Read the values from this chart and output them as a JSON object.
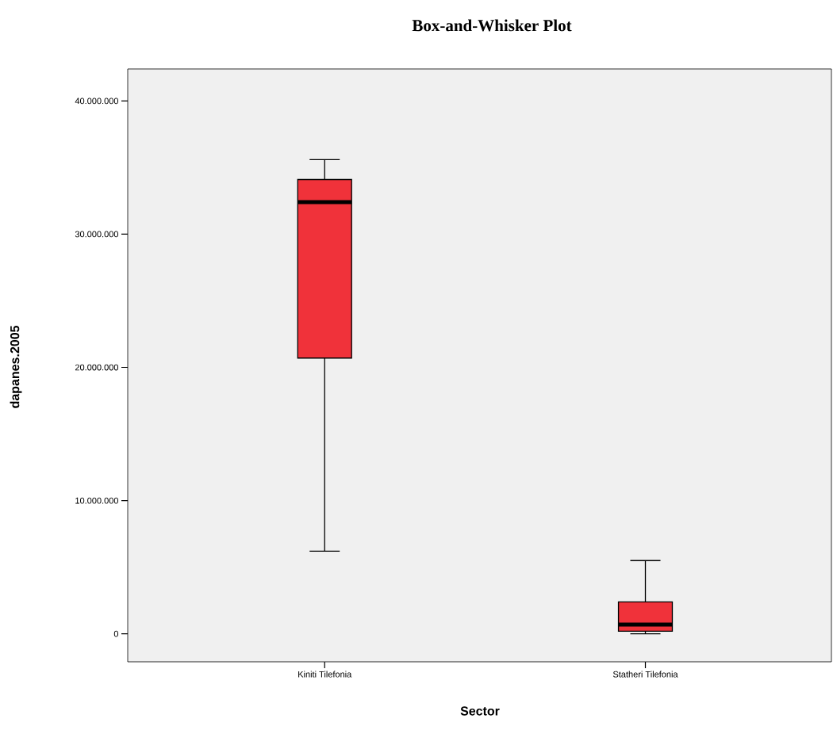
{
  "chart_data": {
    "type": "box",
    "title": "Box-and-Whisker Plot",
    "xlabel": "Sector",
    "ylabel": "dapanes.2005",
    "categories": [
      "Kiniti Tilefonia",
      "Statheri Tilefonia"
    ],
    "color": "#f0323a",
    "boxes": [
      {
        "low": 6200000,
        "q1": 20700000,
        "median": 32400000,
        "q3": 34100000,
        "high": 35600000
      },
      {
        "low": 0,
        "q1": 200000,
        "median": 700000,
        "q3": 2400000,
        "high": 5500000
      }
    ],
    "ylim": [
      -2100000,
      42400000
    ],
    "yticks": [
      0,
      {
        "value": 10000000,
        "label": "10.000.000"
      },
      {
        "value": 20000000,
        "label": "20.000.000"
      },
      {
        "value": 30000000,
        "label": "30.000.000"
      },
      {
        "value": 40000000,
        "label": "40.000.000"
      }
    ]
  }
}
